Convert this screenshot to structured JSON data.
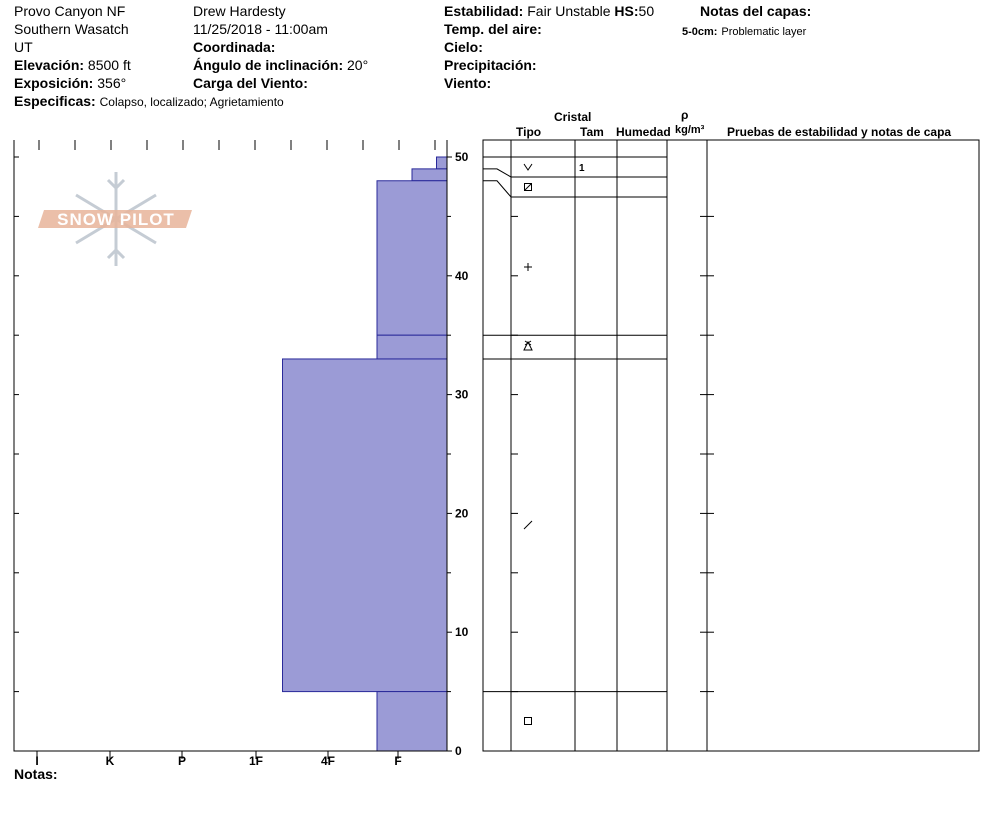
{
  "header": {
    "location": "Provo Canyon NF",
    "range": "Southern Wasatch",
    "state": "UT",
    "elevation_label": "Elevación:",
    "elevation_value": "8500 ft",
    "aspect_label": "Exposición:",
    "aspect_value": "356°",
    "specifics_label": "Especificas:",
    "specifics_value": "Colapso, localizado; Agrietamiento",
    "observer": "Drew Hardesty",
    "datetime": "11/25/2018 - 11:00am",
    "coordinates_label": "Coordinada:",
    "slope_angle_label": "Ángulo de inclinación:",
    "slope_angle_value": "20°",
    "wind_loading_label": "Carga del Viento:",
    "stability_label": "Estabilidad:",
    "stability_value": "Fair Unstable",
    "hs_label": "HS:",
    "hs_value": "50",
    "air_temp_label": "Temp. del aire:",
    "sky_label": "Cielo:",
    "precip_label": "Precipitación:",
    "wind_label": "Viento:",
    "layer_notes_label": "Notas del capas:",
    "layer_note_depth": "5-0cm:",
    "layer_note_text": "Problematic layer",
    "notes_label": "Notas:"
  },
  "table_headers": {
    "crystal": "Cristal",
    "type": "Tipo",
    "size": "Tam",
    "moisture": "Humedad",
    "rho": "ρ",
    "density_unit": "kg/m³",
    "tests": "Pruebas de estabilidad y notas de capa"
  },
  "logo": {
    "text": "SNOW PILOT",
    "color": "#e8b49a"
  },
  "colors": {
    "layer_fill": "#9b9bd6",
    "layer_stroke": "#2a2a9a"
  },
  "chart_data": {
    "type": "bar",
    "title": "",
    "hardness_scale": [
      "I",
      "K",
      "P",
      "1F",
      "4F",
      "F"
    ],
    "ylabel": "",
    "ylim": [
      0,
      50
    ],
    "yticks": [
      0,
      10,
      20,
      30,
      40,
      50
    ],
    "layers": [
      {
        "top": 50,
        "bottom": 49,
        "hardness_level": 0.15,
        "grain": "precip",
        "size": "1"
      },
      {
        "top": 49,
        "bottom": 48,
        "hardness_level": 0.5,
        "grain": "none",
        "size": ""
      },
      {
        "top": 48,
        "bottom": 35,
        "hardness_level": 1.0,
        "grain": "faceted-rounded",
        "size": ""
      },
      {
        "top": 35,
        "bottom": 33,
        "hardness_level": 1.0,
        "grain": "surface-hoar",
        "size": ""
      },
      {
        "top": 33,
        "bottom": 5,
        "hardness_level": 2.35,
        "grain": "decomposing",
        "size": ""
      },
      {
        "top": 5,
        "bottom": 0,
        "hardness_level": 1.0,
        "grain": "faceted",
        "size": ""
      }
    ]
  }
}
